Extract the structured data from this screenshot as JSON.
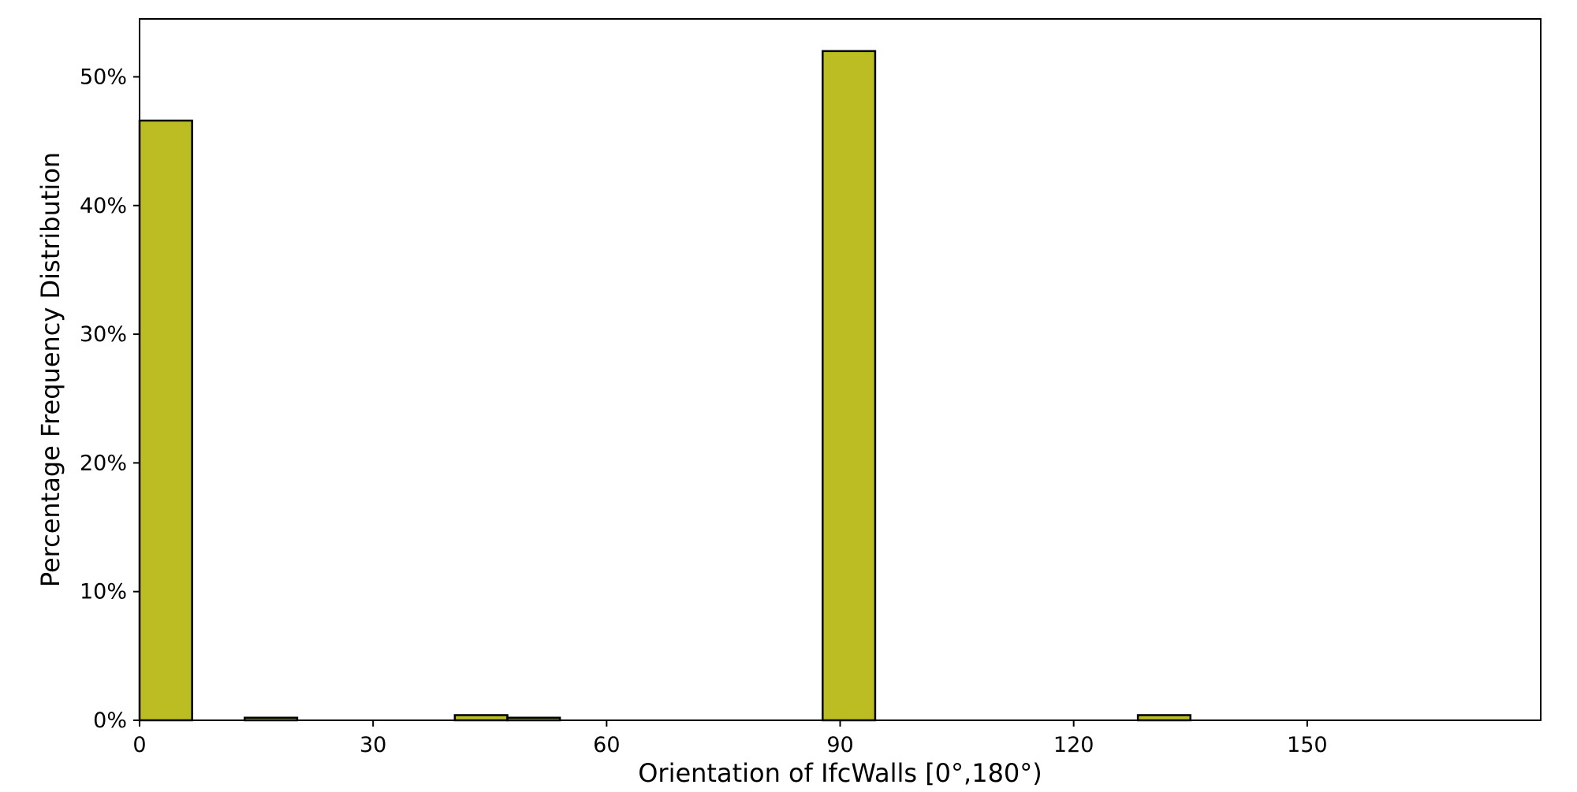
{
  "chart_data": {
    "type": "bar",
    "title": "",
    "xlabel": "Orientation of IfcWalls [0°,180°)",
    "ylabel": "Percentage Frequency Distribution",
    "xlim": [
      0,
      180
    ],
    "ylim": [
      0,
      54.5
    ],
    "bin_width": 6.75,
    "bins": [
      {
        "x_start": 0,
        "x_end": 6.75,
        "value": 46.6
      },
      {
        "x_start": 13.5,
        "x_end": 20.25,
        "value": 0.2
      },
      {
        "x_start": 40.5,
        "x_end": 47.25,
        "value": 0.4
      },
      {
        "x_start": 47.25,
        "x_end": 54.0,
        "value": 0.2
      },
      {
        "x_start": 87.75,
        "x_end": 94.5,
        "value": 52.0
      },
      {
        "x_start": 128.25,
        "x_end": 135.0,
        "value": 0.4
      }
    ],
    "xticks": [
      0,
      30,
      60,
      90,
      120,
      150
    ],
    "xtick_labels": [
      "0",
      "30",
      "60",
      "90",
      "120",
      "150"
    ],
    "yticks": [
      0,
      10,
      20,
      30,
      40,
      50
    ],
    "ytick_labels": [
      "0%",
      "10%",
      "20%",
      "30%",
      "40%",
      "50%"
    ],
    "grid": false,
    "legend": "none",
    "colors": {
      "bar_fill": "#bcbd22",
      "bar_edge": "#000000",
      "axes": "#000000"
    }
  }
}
